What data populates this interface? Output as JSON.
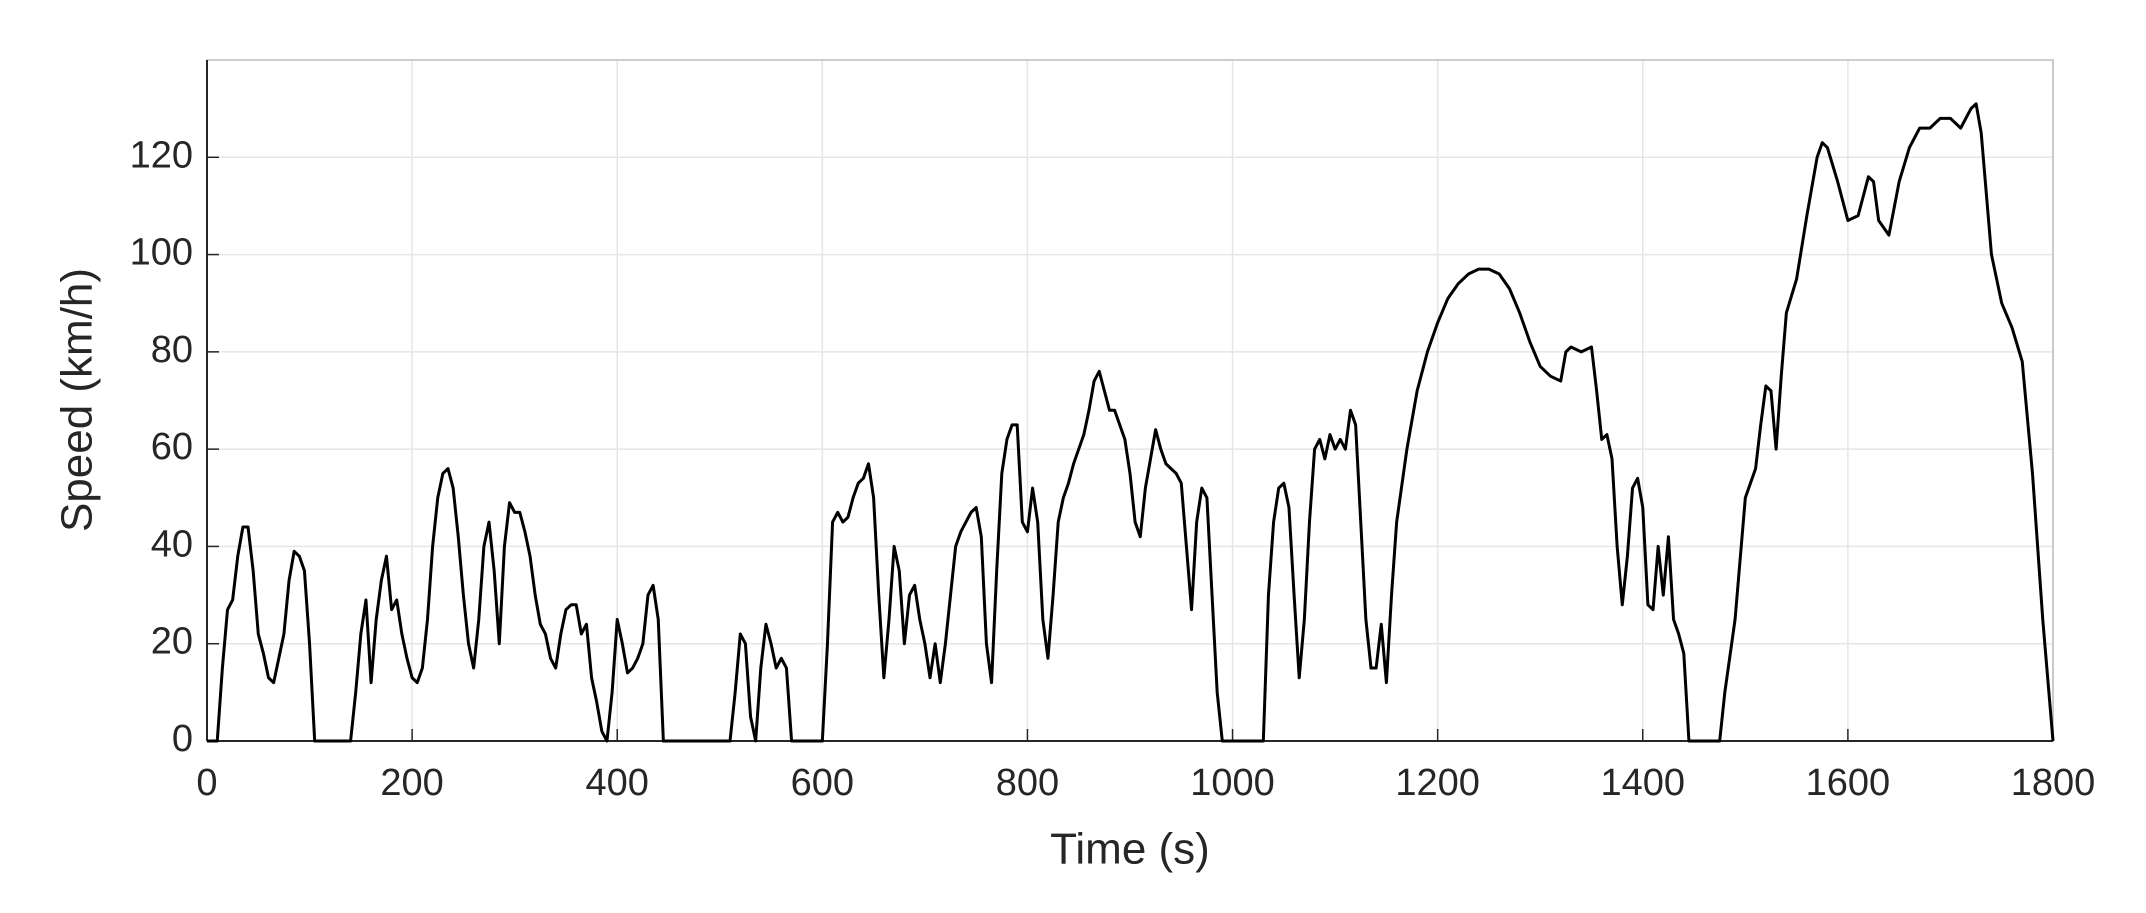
{
  "chart_data": {
    "type": "line",
    "xlabel": "Time (s)",
    "ylabel": "Speed (km/h)",
    "x": [
      0,
      10,
      15,
      20,
      25,
      30,
      35,
      40,
      45,
      50,
      55,
      60,
      65,
      70,
      75,
      80,
      85,
      90,
      95,
      100,
      105,
      140,
      145,
      150,
      155,
      160,
      165,
      170,
      175,
      180,
      185,
      190,
      195,
      200,
      205,
      210,
      215,
      220,
      225,
      230,
      235,
      240,
      245,
      250,
      255,
      260,
      265,
      270,
      275,
      280,
      285,
      290,
      295,
      300,
      305,
      310,
      315,
      320,
      325,
      330,
      335,
      340,
      345,
      350,
      355,
      360,
      365,
      370,
      375,
      380,
      385,
      390,
      395,
      400,
      405,
      410,
      415,
      420,
      425,
      430,
      435,
      440,
      445,
      510,
      515,
      520,
      525,
      530,
      535,
      540,
      545,
      550,
      555,
      560,
      565,
      570,
      600,
      605,
      610,
      615,
      620,
      625,
      630,
      635,
      640,
      645,
      650,
      655,
      660,
      665,
      670,
      675,
      680,
      685,
      690,
      695,
      700,
      705,
      710,
      715,
      720,
      725,
      730,
      735,
      740,
      745,
      750,
      755,
      760,
      765,
      770,
      775,
      780,
      785,
      790,
      795,
      800,
      805,
      810,
      815,
      820,
      825,
      830,
      835,
      840,
      845,
      850,
      855,
      860,
      865,
      870,
      875,
      880,
      885,
      890,
      895,
      900,
      905,
      910,
      915,
      920,
      925,
      930,
      935,
      940,
      945,
      950,
      955,
      960,
      965,
      970,
      975,
      980,
      985,
      990,
      1030,
      1035,
      1040,
      1045,
      1050,
      1055,
      1060,
      1065,
      1070,
      1075,
      1080,
      1085,
      1090,
      1095,
      1100,
      1105,
      1110,
      1115,
      1120,
      1125,
      1130,
      1135,
      1140,
      1145,
      1150,
      1155,
      1160,
      1170,
      1180,
      1190,
      1200,
      1210,
      1220,
      1230,
      1240,
      1250,
      1260,
      1270,
      1280,
      1290,
      1300,
      1310,
      1320,
      1325,
      1330,
      1340,
      1350,
      1355,
      1360,
      1365,
      1370,
      1375,
      1380,
      1385,
      1390,
      1395,
      1400,
      1405,
      1410,
      1415,
      1420,
      1425,
      1430,
      1435,
      1440,
      1445,
      1475,
      1480,
      1490,
      1500,
      1510,
      1515,
      1520,
      1525,
      1530,
      1535,
      1540,
      1550,
      1560,
      1570,
      1575,
      1580,
      1590,
      1600,
      1610,
      1620,
      1625,
      1630,
      1640,
      1650,
      1660,
      1670,
      1680,
      1690,
      1700,
      1710,
      1720,
      1725,
      1730,
      1740,
      1750,
      1760,
      1770,
      1780,
      1790,
      1800
    ],
    "series": [
      {
        "color": "#000000",
        "values": [
          0,
          0,
          15,
          27,
          29,
          38,
          44,
          44,
          35,
          22,
          18,
          13,
          12,
          17,
          22,
          33,
          39,
          38,
          35,
          20,
          0,
          0,
          10,
          22,
          29,
          12,
          25,
          33,
          38,
          27,
          29,
          22,
          17,
          13,
          12,
          15,
          25,
          40,
          50,
          55,
          56,
          52,
          42,
          30,
          20,
          15,
          25,
          40,
          45,
          35,
          20,
          40,
          49,
          47,
          47,
          43,
          38,
          30,
          24,
          22,
          17,
          15,
          22,
          27,
          28,
          28,
          22,
          24,
          13,
          8,
          2,
          0,
          10,
          25,
          20,
          14,
          15,
          17,
          20,
          30,
          32,
          25,
          0,
          0,
          10,
          22,
          20,
          5,
          0,
          15,
          24,
          20,
          15,
          17,
          15,
          0,
          0,
          20,
          45,
          47,
          45,
          46,
          50,
          53,
          54,
          57,
          50,
          30,
          13,
          25,
          40,
          35,
          20,
          30,
          32,
          25,
          20,
          13,
          20,
          12,
          20,
          30,
          40,
          43,
          45,
          47,
          48,
          42,
          20,
          12,
          35,
          55,
          62,
          65,
          65,
          45,
          43,
          52,
          45,
          25,
          17,
          30,
          45,
          50,
          53,
          57,
          60,
          63,
          68,
          74,
          76,
          72,
          68,
          68,
          65,
          62,
          55,
          45,
          42,
          52,
          58,
          64,
          60,
          57,
          56,
          55,
          53,
          40,
          27,
          45,
          52,
          50,
          30,
          10,
          0,
          0,
          30,
          45,
          52,
          53,
          48,
          30,
          13,
          25,
          45,
          60,
          62,
          58,
          63,
          60,
          62,
          60,
          68,
          65,
          45,
          25,
          15,
          15,
          24,
          12,
          30,
          45,
          60,
          72,
          80,
          86,
          91,
          94,
          96,
          97,
          97,
          96,
          93,
          88,
          82,
          77,
          75,
          74,
          80,
          81,
          80,
          81,
          72,
          62,
          63,
          58,
          40,
          28,
          38,
          52,
          54,
          48,
          28,
          27,
          40,
          30,
          42,
          25,
          22,
          18,
          0,
          0,
          10,
          25,
          50,
          56,
          65,
          73,
          72,
          60,
          75,
          88,
          95,
          108,
          120,
          123,
          122,
          115,
          107,
          108,
          116,
          115,
          107,
          104,
          115,
          122,
          126,
          126,
          128,
          128,
          126,
          130,
          131,
          125,
          100,
          90,
          85,
          78,
          55,
          25,
          0
        ]
      }
    ],
    "xlim": [
      0,
      1800
    ],
    "xticks": [
      0,
      200,
      400,
      600,
      800,
      1000,
      1200,
      1400,
      1600,
      1800
    ],
    "ylim": [
      0,
      140
    ],
    "yticks": [
      0,
      20,
      40,
      60,
      80,
      100,
      120
    ],
    "grid": true
  }
}
